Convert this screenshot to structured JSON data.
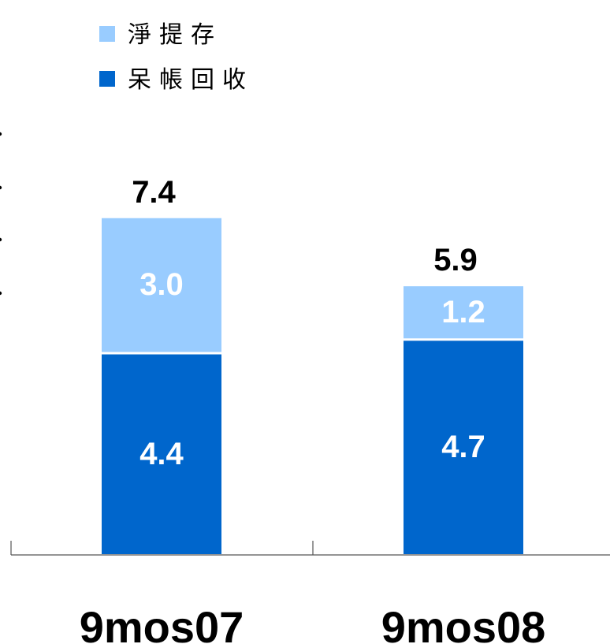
{
  "chart_data": {
    "type": "bar",
    "stacked": true,
    "categories": [
      "9mos07",
      "9mos08"
    ],
    "series": [
      {
        "name": "呆帳回收",
        "values": [
          4.4,
          4.7
        ],
        "color": "#0066cc"
      },
      {
        "name": "淨提存",
        "values": [
          3.0,
          1.2
        ],
        "color": "#99ccff"
      }
    ],
    "totals": [
      7.4,
      5.9
    ],
    "title": "",
    "xlabel": "",
    "ylabel": "",
    "ylim": [
      0,
      9
    ],
    "grid": false,
    "legend_position": "top-left",
    "legend_order": [
      "淨提存",
      "呆帳回收"
    ]
  }
}
